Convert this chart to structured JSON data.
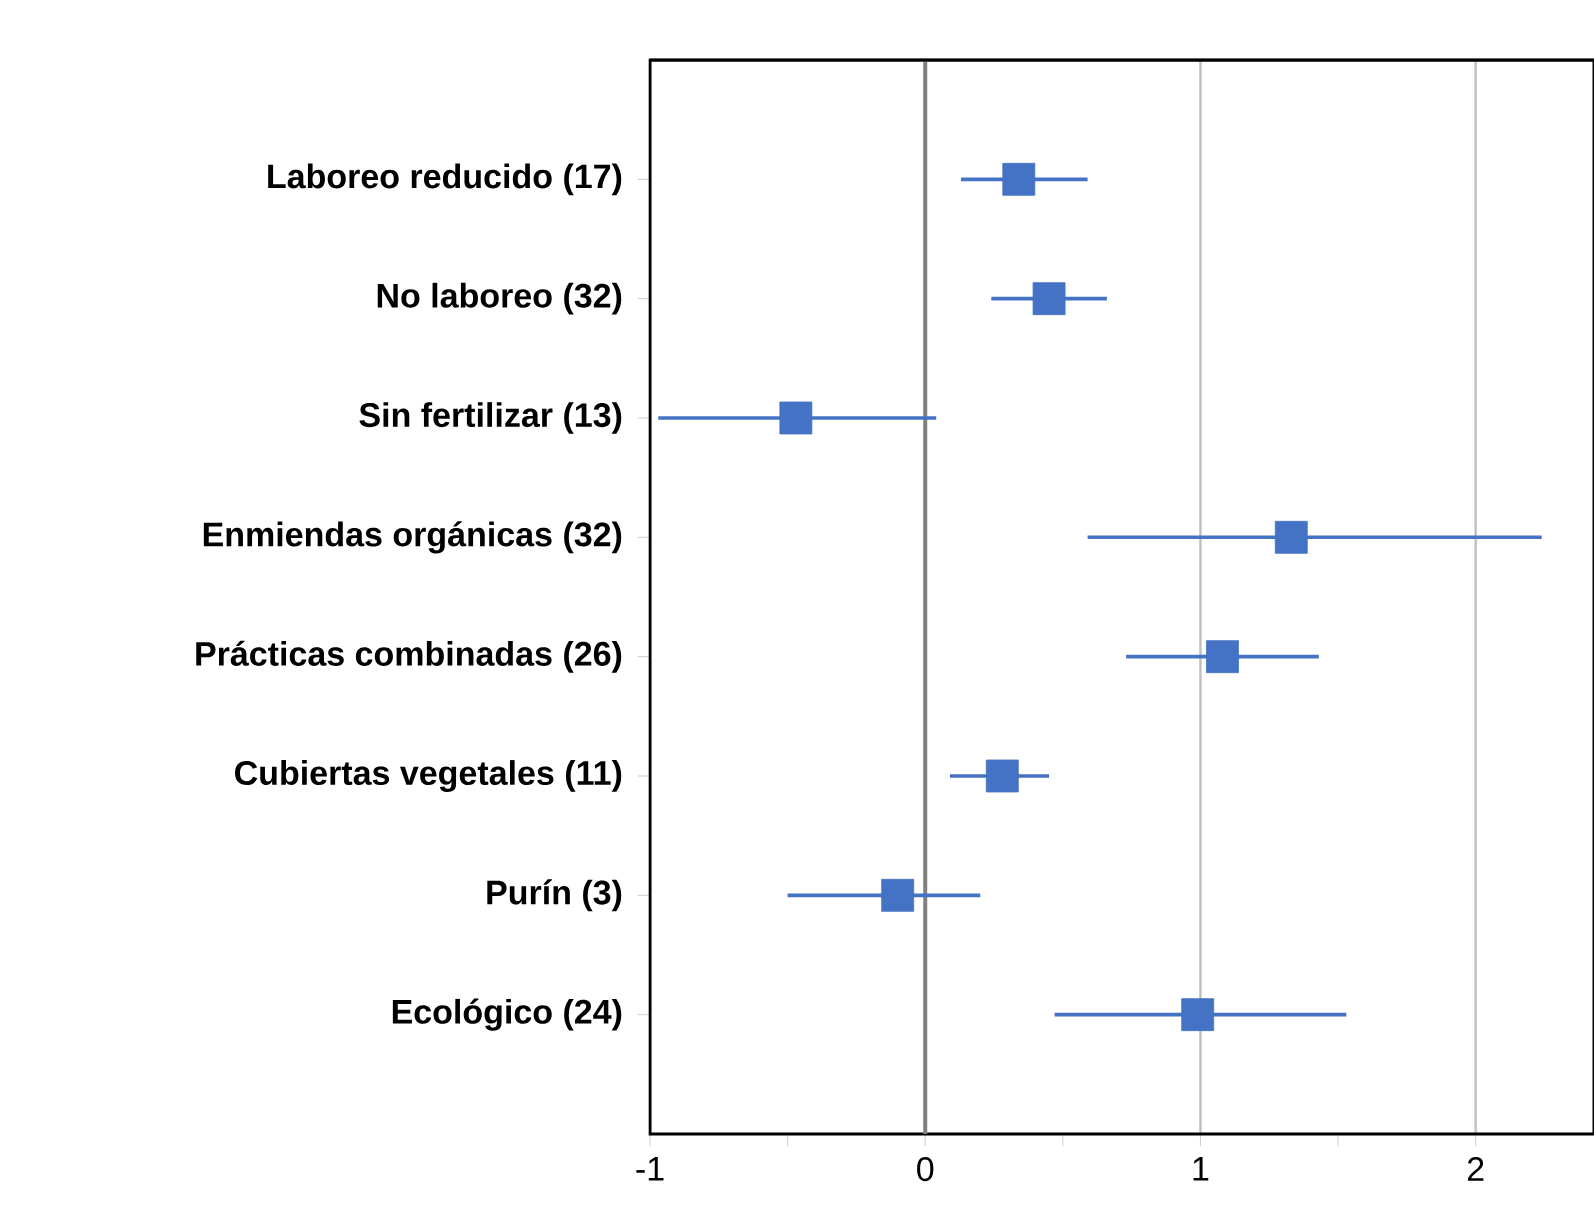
{
  "chart_data": {
    "type": "scatter",
    "orientation": "horizontal",
    "categories": [
      "Laboreo reducido (17)",
      "No laboreo (32)",
      "Sin fertilizar (13)",
      "Enmiendas orgánicas (32)",
      "Prácticas combinadas (26)",
      "Cubiertas vegetales (11)",
      "Purín (3)",
      "Ecológico (24)"
    ],
    "values": [
      0.34,
      0.45,
      -0.47,
      1.33,
      1.08,
      0.28,
      -0.1,
      0.99
    ],
    "errors": [
      [
        0.13,
        0.59
      ],
      [
        0.24,
        0.66
      ],
      [
        -0.97,
        0.04
      ],
      [
        0.59,
        2.24
      ],
      [
        0.73,
        1.43
      ],
      [
        0.09,
        0.45
      ],
      [
        -0.5,
        0.2
      ],
      [
        0.47,
        1.53
      ]
    ],
    "color": "#4472c4",
    "marker": "square",
    "xlim": [
      -1,
      2.43
    ],
    "xticks": [
      -1,
      {
        "value": -0.5,
        "label": null
      },
      0,
      {
        "value": 0.5,
        "label": null
      },
      1,
      {
        "value": 1.5,
        "label": null
      },
      2
    ],
    "grid": "x",
    "ref_lines": [
      {
        "axis": "x",
        "value": 0,
        "color": "#808080"
      }
    ]
  }
}
